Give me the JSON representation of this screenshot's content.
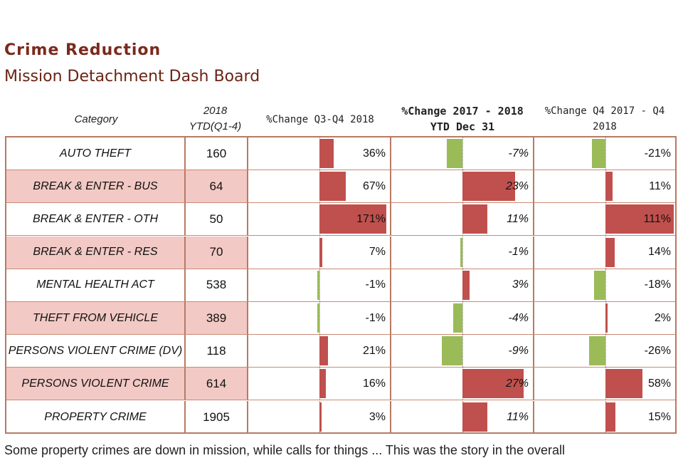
{
  "title": "Crime Reduction",
  "subtitle": "Mission Detachment Dash Board",
  "chart_data": {
    "type": "table",
    "columns": {
      "category": "Category",
      "ytd": "2018 YTD(Q1-4)",
      "q3q4": "%Change Q3-Q4 2018",
      "ytd_change": "%Change 2017 - 2018 YTD Dec 31",
      "q4q4": "%Change Q4 2017 - Q4 2018"
    },
    "rows": [
      {
        "category": "AUTO THEFT",
        "ytd": "160",
        "q3q4": 36,
        "ytd_change": -7,
        "q4q4": -21,
        "shaded": false
      },
      {
        "category": "BREAK & ENTER - BUS",
        "ytd": "64",
        "q3q4": 67,
        "ytd_change": 23,
        "q4q4": 11,
        "shaded": true
      },
      {
        "category": "BREAK & ENTER - OTH",
        "ytd": "50",
        "q3q4": 171,
        "ytd_change": 11,
        "q4q4": 111,
        "shaded": false
      },
      {
        "category": "BREAK & ENTER - RES",
        "ytd": "70",
        "q3q4": 7,
        "ytd_change": -1,
        "q4q4": 14,
        "shaded": true
      },
      {
        "category": "MENTAL HEALTH ACT",
        "ytd": "538",
        "q3q4": -1,
        "ytd_change": 3,
        "q4q4": -18,
        "shaded": false
      },
      {
        "category": "THEFT FROM VEHICLE",
        "ytd": "389",
        "q3q4": -1,
        "ytd_change": -4,
        "q4q4": 2,
        "shaded": true
      },
      {
        "category": "PERSONS VIOLENT CRIME (DV)",
        "ytd": "118",
        "q3q4": 21,
        "ytd_change": -9,
        "q4q4": -26,
        "shaded": false
      },
      {
        "category": "PERSONS VIOLENT CRIME",
        "ytd": "614",
        "q3q4": 16,
        "ytd_change": 27,
        "q4q4": 58,
        "shaded": true
      },
      {
        "category": "PROPERTY CRIME",
        "ytd": "1905",
        "q3q4": 3,
        "ytd_change": 11,
        "q4q4": 15,
        "shaded": false
      }
    ],
    "colors": {
      "positive": "#c0504d",
      "negative": "#9bbb59",
      "shade": "#f2c9c4"
    }
  },
  "footer_text": "Some property crimes are down in mission, while calls for things ... This was the story in the overall"
}
